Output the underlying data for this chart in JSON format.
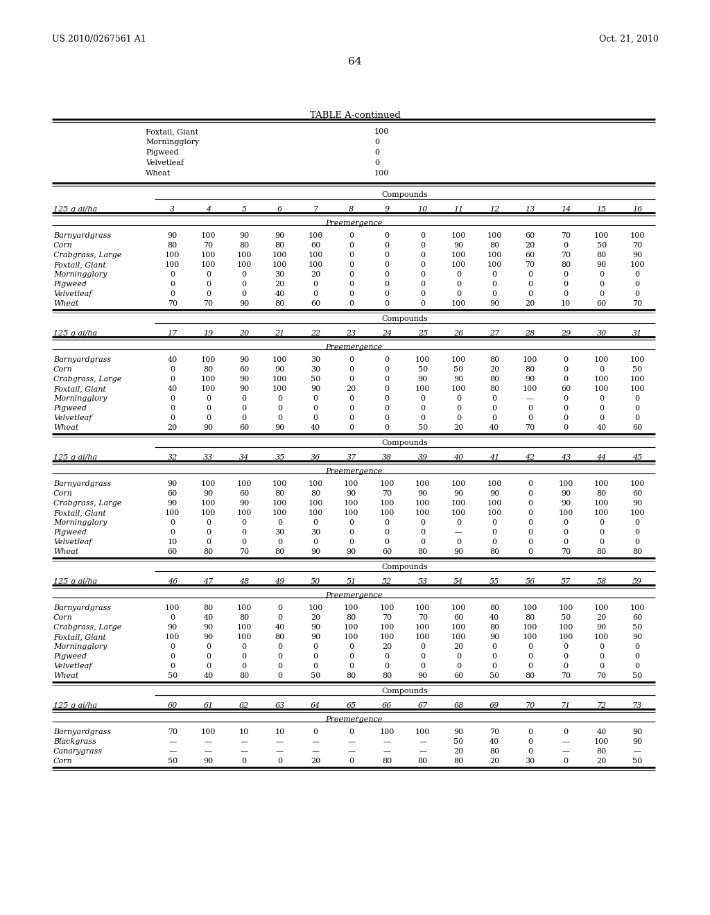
{
  "patent_left": "US 2010/0267561 A1",
  "patent_right": "Oct. 21, 2010",
  "page_num": "64",
  "table_title": "TABLE A-continued",
  "background_color": "#ffffff",
  "text_color": "#000000",
  "cont_rows": [
    [
      "Foxtail, Giant",
      "100"
    ],
    [
      "Morningglory",
      "0"
    ],
    [
      "Pigweed",
      "0"
    ],
    [
      "Velvetleaf",
      "0"
    ],
    [
      "Wheat",
      "100"
    ]
  ],
  "tables": [
    {
      "columns": [
        "3",
        "4",
        "5",
        "6",
        "7",
        "8",
        "9",
        "10",
        "11",
        "12",
        "13",
        "14",
        "15",
        "16"
      ],
      "rows": [
        [
          "Barnyardgrass",
          "90",
          "100",
          "90",
          "90",
          "100",
          "0",
          "0",
          "0",
          "100",
          "100",
          "60",
          "70",
          "100",
          "100"
        ],
        [
          "Corn",
          "80",
          "70",
          "80",
          "80",
          "60",
          "0",
          "0",
          "0",
          "90",
          "80",
          "20",
          "0",
          "50",
          "70"
        ],
        [
          "Crabgrass, Large",
          "100",
          "100",
          "100",
          "100",
          "100",
          "0",
          "0",
          "0",
          "100",
          "100",
          "60",
          "70",
          "80",
          "90"
        ],
        [
          "Foxtail, Giant",
          "100",
          "100",
          "100",
          "100",
          "100",
          "0",
          "0",
          "0",
          "100",
          "100",
          "70",
          "80",
          "90",
          "100"
        ],
        [
          "Morningglory",
          "0",
          "0",
          "0",
          "30",
          "20",
          "0",
          "0",
          "0",
          "0",
          "0",
          "0",
          "0",
          "0",
          "0"
        ],
        [
          "Pigweed",
          "0",
          "0",
          "0",
          "20",
          "0",
          "0",
          "0",
          "0",
          "0",
          "0",
          "0",
          "0",
          "0",
          "0"
        ],
        [
          "Velvetleaf",
          "0",
          "0",
          "0",
          "40",
          "0",
          "0",
          "0",
          "0",
          "0",
          "0",
          "0",
          "0",
          "0",
          "0"
        ],
        [
          "Wheat",
          "70",
          "70",
          "90",
          "80",
          "60",
          "0",
          "0",
          "0",
          "100",
          "90",
          "20",
          "10",
          "60",
          "70"
        ]
      ]
    },
    {
      "columns": [
        "17",
        "19",
        "20",
        "21",
        "22",
        "23",
        "24",
        "25",
        "26",
        "27",
        "28",
        "29",
        "30",
        "31"
      ],
      "rows": [
        [
          "Barnyardgrass",
          "40",
          "100",
          "90",
          "100",
          "30",
          "0",
          "0",
          "100",
          "100",
          "80",
          "100",
          "0",
          "100",
          "100"
        ],
        [
          "Corn",
          "0",
          "80",
          "60",
          "90",
          "30",
          "0",
          "0",
          "50",
          "50",
          "20",
          "80",
          "0",
          "0",
          "50"
        ],
        [
          "Crabgrass, Large",
          "0",
          "100",
          "90",
          "100",
          "50",
          "0",
          "0",
          "90",
          "90",
          "80",
          "90",
          "0",
          "100",
          "100"
        ],
        [
          "Foxtail, Giant",
          "40",
          "100",
          "90",
          "100",
          "90",
          "20",
          "0",
          "100",
          "100",
          "80",
          "100",
          "60",
          "100",
          "100"
        ],
        [
          "Morningglory",
          "0",
          "0",
          "0",
          "0",
          "0",
          "0",
          "0",
          "0",
          "0",
          "0",
          "—",
          "0",
          "0",
          "0"
        ],
        [
          "Pigweed",
          "0",
          "0",
          "0",
          "0",
          "0",
          "0",
          "0",
          "0",
          "0",
          "0",
          "0",
          "0",
          "0",
          "0"
        ],
        [
          "Velvetleaf",
          "0",
          "0",
          "0",
          "0",
          "0",
          "0",
          "0",
          "0",
          "0",
          "0",
          "0",
          "0",
          "0",
          "0"
        ],
        [
          "Wheat",
          "20",
          "90",
          "60",
          "90",
          "40",
          "0",
          "0",
          "50",
          "20",
          "40",
          "70",
          "0",
          "40",
          "60"
        ]
      ]
    },
    {
      "columns": [
        "32",
        "33",
        "34",
        "35",
        "36",
        "37",
        "38",
        "39",
        "40",
        "41",
        "42",
        "43",
        "44",
        "45"
      ],
      "rows": [
        [
          "Barnyardgrass",
          "90",
          "100",
          "100",
          "100",
          "100",
          "100",
          "100",
          "100",
          "100",
          "100",
          "0",
          "100",
          "100",
          "100"
        ],
        [
          "Corn",
          "60",
          "90",
          "60",
          "80",
          "80",
          "90",
          "70",
          "90",
          "90",
          "90",
          "0",
          "90",
          "80",
          "60"
        ],
        [
          "Crabgrass, Large",
          "90",
          "100",
          "90",
          "100",
          "100",
          "100",
          "100",
          "100",
          "100",
          "100",
          "0",
          "90",
          "100",
          "90"
        ],
        [
          "Foxtail, Giant",
          "100",
          "100",
          "100",
          "100",
          "100",
          "100",
          "100",
          "100",
          "100",
          "100",
          "0",
          "100",
          "100",
          "100"
        ],
        [
          "Morningglory",
          "0",
          "0",
          "0",
          "0",
          "0",
          "0",
          "0",
          "0",
          "0",
          "0",
          "0",
          "0",
          "0",
          "0"
        ],
        [
          "Pigweed",
          "0",
          "0",
          "0",
          "30",
          "30",
          "0",
          "0",
          "0",
          "—",
          "0",
          "0",
          "0",
          "0",
          "0"
        ],
        [
          "Velvetleaf",
          "10",
          "0",
          "0",
          "0",
          "0",
          "0",
          "0",
          "0",
          "0",
          "0",
          "0",
          "0",
          "0",
          "0"
        ],
        [
          "Wheat",
          "60",
          "80",
          "70",
          "80",
          "90",
          "90",
          "60",
          "80",
          "90",
          "80",
          "0",
          "70",
          "80",
          "80"
        ]
      ]
    },
    {
      "columns": [
        "46",
        "47",
        "48",
        "49",
        "50",
        "51",
        "52",
        "53",
        "54",
        "55",
        "56",
        "57",
        "58",
        "59"
      ],
      "rows": [
        [
          "Barnyardgrass",
          "100",
          "80",
          "100",
          "0",
          "100",
          "100",
          "100",
          "100",
          "100",
          "80",
          "100",
          "100",
          "100",
          "100"
        ],
        [
          "Corn",
          "0",
          "40",
          "80",
          "0",
          "20",
          "80",
          "70",
          "70",
          "60",
          "40",
          "80",
          "50",
          "20",
          "60"
        ],
        [
          "Crabgrass, Large",
          "90",
          "90",
          "100",
          "40",
          "90",
          "100",
          "100",
          "100",
          "100",
          "80",
          "100",
          "100",
          "90",
          "50"
        ],
        [
          "Foxtail, Giant",
          "100",
          "90",
          "100",
          "80",
          "90",
          "100",
          "100",
          "100",
          "100",
          "90",
          "100",
          "100",
          "100",
          "90"
        ],
        [
          "Morningglory",
          "0",
          "0",
          "0",
          "0",
          "0",
          "0",
          "20",
          "0",
          "20",
          "0",
          "0",
          "0",
          "0",
          "0"
        ],
        [
          "Pigweed",
          "0",
          "0",
          "0",
          "0",
          "0",
          "0",
          "0",
          "0",
          "0",
          "0",
          "0",
          "0",
          "0",
          "0"
        ],
        [
          "Velvetleaf",
          "0",
          "0",
          "0",
          "0",
          "0",
          "0",
          "0",
          "0",
          "0",
          "0",
          "0",
          "0",
          "0",
          "0"
        ],
        [
          "Wheat",
          "50",
          "40",
          "80",
          "0",
          "50",
          "80",
          "80",
          "90",
          "60",
          "50",
          "80",
          "70",
          "70",
          "50"
        ]
      ]
    },
    {
      "columns": [
        "60",
        "61",
        "62",
        "63",
        "64",
        "65",
        "66",
        "67",
        "68",
        "69",
        "70",
        "71",
        "72",
        "73"
      ],
      "rows": [
        [
          "Barnyardgrass",
          "70",
          "100",
          "10",
          "10",
          "0",
          "0",
          "100",
          "100",
          "90",
          "70",
          "0",
          "0",
          "40",
          "90"
        ],
        [
          "Blackgrass",
          "—",
          "—",
          "—",
          "—",
          "—",
          "—",
          "—",
          "—",
          "50",
          "40",
          "0",
          "—",
          "100",
          "90"
        ],
        [
          "Canarygrass",
          "—",
          "—",
          "—",
          "—",
          "—",
          "—",
          "—",
          "—",
          "20",
          "80",
          "0",
          "—",
          "80",
          "—"
        ],
        [
          "Corn",
          "50",
          "90",
          "0",
          "0",
          "20",
          "0",
          "80",
          "80",
          "80",
          "20",
          "30",
          "0",
          "20",
          "50"
        ]
      ]
    }
  ]
}
